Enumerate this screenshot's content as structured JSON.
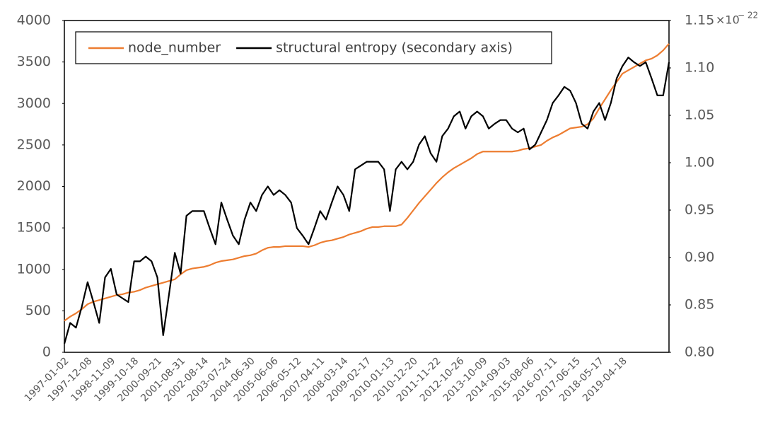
{
  "chart_data": {
    "type": "line",
    "categories": [
      "1997-01-02",
      null,
      null,
      null,
      "1997-12-08",
      null,
      null,
      null,
      "1998-11-09",
      null,
      null,
      null,
      "1999-10-18",
      null,
      null,
      null,
      "2000-09-21",
      null,
      null,
      null,
      "2001-08-31",
      null,
      null,
      null,
      "2002-08-14",
      null,
      null,
      null,
      "2003-07-24",
      null,
      null,
      null,
      "2004-06-30",
      null,
      null,
      null,
      "2005-06-06",
      null,
      null,
      null,
      "2006-05-12",
      null,
      null,
      null,
      "2007-04-11",
      null,
      null,
      null,
      "2008-03-14",
      null,
      null,
      null,
      "2009-02-17",
      null,
      null,
      null,
      "2010-01-13",
      null,
      null,
      null,
      "2010-12-20",
      null,
      null,
      null,
      "2011-11-22",
      null,
      null,
      null,
      "2012-10-26",
      null,
      null,
      null,
      "2013-10-09",
      null,
      null,
      null,
      "2014-09-03",
      null,
      null,
      null,
      "2015-08-06",
      null,
      null,
      null,
      "2016-07-11",
      null,
      null,
      null,
      "2017-06-15",
      null,
      null,
      null,
      "2018-05-17",
      null,
      null,
      null,
      "2019-04-18",
      null,
      null,
      null,
      null,
      null,
      null,
      null,
      null
    ],
    "series": [
      {
        "name": "node_number",
        "color": "#ed7d31",
        "values": [
          380,
          430,
          470,
          520,
          580,
          610,
          630,
          650,
          670,
          690,
          700,
          720,
          730,
          750,
          780,
          800,
          820,
          840,
          860,
          880,
          940,
          990,
          1010,
          1020,
          1030,
          1050,
          1080,
          1100,
          1110,
          1120,
          1140,
          1160,
          1170,
          1190,
          1230,
          1260,
          1270,
          1270,
          1280,
          1280,
          1280,
          1280,
          1270,
          1290,
          1320,
          1340,
          1350,
          1370,
          1390,
          1420,
          1440,
          1460,
          1490,
          1510,
          1510,
          1520,
          1520,
          1520,
          1540,
          1620,
          1710,
          1800,
          1880,
          1960,
          2040,
          2110,
          2170,
          2220,
          2260,
          2300,
          2340,
          2390,
          2420,
          2420,
          2420,
          2420,
          2420,
          2420,
          2430,
          2450,
          2460,
          2480,
          2500,
          2550,
          2590,
          2620,
          2660,
          2700,
          2710,
          2720,
          2750,
          2820,
          2940,
          3050,
          3160,
          3260,
          3360,
          3400,
          3440,
          3480,
          3520,
          3540,
          3580,
          3640,
          3720
        ]
      },
      {
        "name": "structural entropy (secondary axis)",
        "color": "#000000",
        "axis": "y2",
        "values": [
          0.809,
          0.831,
          0.826,
          0.848,
          0.874,
          0.853,
          0.831,
          0.879,
          0.888,
          0.861,
          0.857,
          0.853,
          0.896,
          0.896,
          0.901,
          0.896,
          0.879,
          0.818,
          0.861,
          0.905,
          0.883,
          0.944,
          0.949,
          0.949,
          0.949,
          0.931,
          0.914,
          0.958,
          0.94,
          0.923,
          0.914,
          0.94,
          0.958,
          0.949,
          0.966,
          0.975,
          0.966,
          0.971,
          0.966,
          0.958,
          0.931,
          0.923,
          0.914,
          0.931,
          0.949,
          0.94,
          0.958,
          0.975,
          0.966,
          0.949,
          0.993,
          0.997,
          1.001,
          1.001,
          1.001,
          0.993,
          0.949,
          0.993,
          1.001,
          0.993,
          1.001,
          1.019,
          1.028,
          1.01,
          1.001,
          1.028,
          1.036,
          1.049,
          1.054,
          1.036,
          1.049,
          1.054,
          1.049,
          1.036,
          1.041,
          1.045,
          1.045,
          1.036,
          1.032,
          1.036,
          1.014,
          1.019,
          1.032,
          1.045,
          1.063,
          1.071,
          1.08,
          1.076,
          1.063,
          1.041,
          1.036,
          1.054,
          1.063,
          1.045,
          1.063,
          1.089,
          1.102,
          1.111,
          1.106,
          1.102,
          1.106,
          1.089,
          1.071,
          1.071,
          1.106
        ]
      }
    ],
    "ylim": [
      0,
      4000
    ],
    "yticks": [
      0,
      500,
      1000,
      1500,
      2000,
      2500,
      3000,
      3500,
      4000
    ],
    "y2lim": [
      0.8,
      1.15
    ],
    "y2ticks": [
      {
        "value": 0.8,
        "label": "0.80"
      },
      {
        "value": 0.85,
        "label": "0.85"
      },
      {
        "value": 0.9,
        "label": "0.90"
      },
      {
        "value": 0.95,
        "label": "0.95"
      },
      {
        "value": 1.0,
        "label": "1.00"
      },
      {
        "value": 1.05,
        "label": "1.05"
      },
      {
        "value": 1.1,
        "label": "1.10"
      },
      {
        "value": 1.15,
        "label": "1.15"
      }
    ],
    "y2_multiplier": "×10",
    "y2_exponent": "− 22",
    "grid": false,
    "legend": "top-left"
  }
}
